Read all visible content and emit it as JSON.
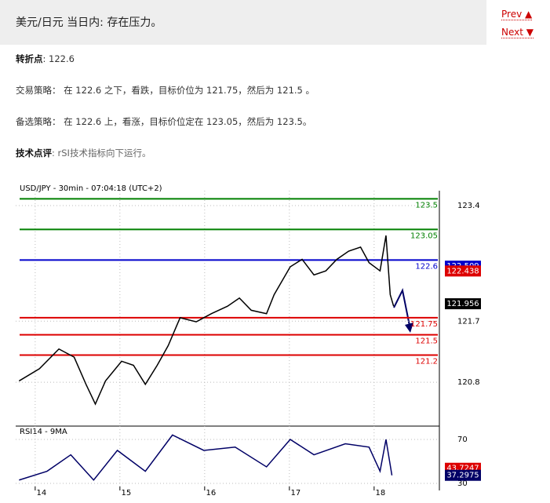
{
  "header": {
    "title": "美元/日元 当日内: 存在压力。"
  },
  "nav": {
    "prev": "Prev",
    "next": "Next"
  },
  "pivot": {
    "label": "转折点",
    "text": ": 122.6"
  },
  "strategy": "交易策略： 在 122.6 之下，看跌，目标价位为 121.75，然后为 121.5 。",
  "alternative": "备选策略： 在 122.6 上，看涨，目标价位定在 123.05，然后为 123.5。",
  "comment": {
    "label": "技术点评",
    "text": ": rSI技术指标向下运行。"
  },
  "chart_data": {
    "type": "line",
    "title": "USD/JPY - 30min - 07:04:18 (UTC+2)",
    "xlim": [
      13.77,
      18.77
    ],
    "xticks": [
      14,
      15,
      16,
      17,
      18
    ],
    "ylim": [
      120.19,
      123.62
    ],
    "yticks": [
      120.8,
      121.7,
      123.4
    ],
    "x": [
      13.81,
      14.05,
      14.28,
      14.46,
      14.6,
      14.71,
      14.83,
      15.02,
      15.16,
      15.3,
      15.44,
      15.57,
      15.71,
      15.9,
      16.08,
      16.27,
      16.41,
      16.55,
      16.73,
      16.82,
      17.01,
      17.15,
      17.29,
      17.43,
      17.56,
      17.7,
      17.84,
      17.94,
      18.07,
      18.14,
      18.19,
      18.23
    ],
    "values": [
      120.82,
      121.0,
      121.29,
      121.17,
      120.77,
      120.48,
      120.82,
      121.11,
      121.05,
      120.77,
      121.05,
      121.34,
      121.75,
      121.69,
      121.81,
      121.92,
      122.04,
      121.86,
      121.81,
      122.09,
      122.5,
      122.61,
      122.38,
      122.44,
      122.61,
      122.73,
      122.79,
      122.56,
      122.44,
      122.96,
      122.09,
      121.92
    ],
    "color": "#000000",
    "levels": [
      {
        "value": 123.5,
        "color": "#008000"
      },
      {
        "value": 123.05,
        "color": "#008000"
      },
      {
        "value": 122.6,
        "color": "#0000cc"
      },
      {
        "value": 121.75,
        "color": "#dd0000"
      },
      {
        "value": 121.5,
        "color": "#dd0000"
      },
      {
        "value": 121.2,
        "color": "#dd0000"
      }
    ],
    "price_tags": [
      {
        "value": 122.509,
        "color": "#0000cc"
      },
      {
        "value": 122.438,
        "color": "#dd0000"
      },
      {
        "value": 121.956,
        "color": "#000000"
      }
    ],
    "rsi": {
      "title": "RSI14 - 9MA",
      "ylim": [
        27.1,
        80.7
      ],
      "yticks": [
        30,
        70
      ],
      "color": "#000066",
      "x": [
        13.81,
        14.14,
        14.42,
        14.69,
        14.97,
        15.3,
        15.62,
        15.99,
        16.36,
        16.73,
        17.01,
        17.29,
        17.66,
        17.94,
        18.07,
        18.14,
        18.21
      ],
      "values": [
        33,
        41,
        56,
        33,
        60,
        41,
        74,
        60,
        63,
        45,
        70,
        56,
        66,
        63,
        41,
        70,
        37.3
      ],
      "tags": [
        {
          "value": 43.7247,
          "color": "#dd0000"
        },
        {
          "value": 37.2975,
          "color": "#000066"
        }
      ]
    },
    "grid": true
  }
}
